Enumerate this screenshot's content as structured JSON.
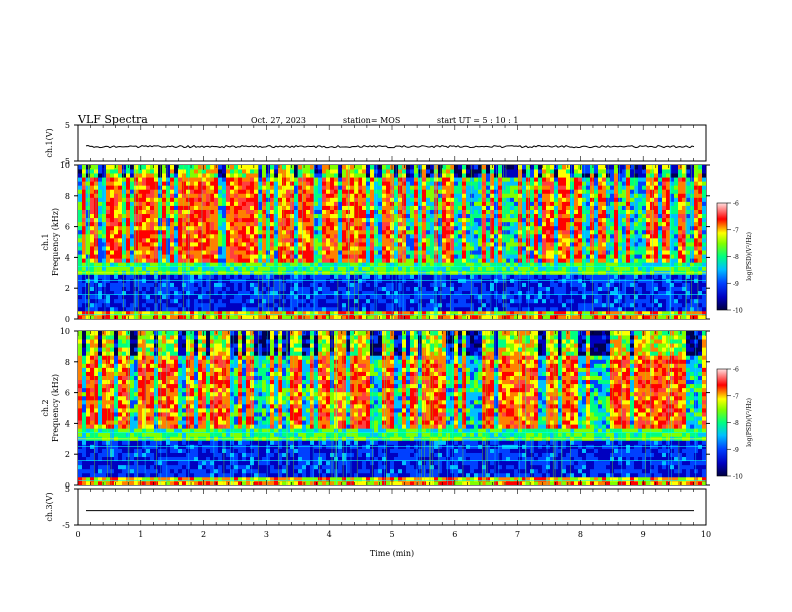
{
  "header": {
    "title": "VLF Spectra",
    "date": "Oct. 27, 2023",
    "station": "station= MOS",
    "start": "start  UT  =   5  : 10 : 1"
  },
  "chart_data": [
    {
      "type": "line",
      "panel": "ch1-waveform",
      "ylabel": "ch.1(V)",
      "ylim": [
        -5,
        5
      ],
      "yticks": [
        "5",
        "-5"
      ],
      "series": [
        {
          "values_description_free": true,
          "level": -1.0
        }
      ]
    },
    {
      "type": "heatmap",
      "panel": "ch1-spectrogram",
      "ylabel": [
        "ch.1",
        "Frequency (kHz)"
      ],
      "ylim": [
        0,
        10
      ],
      "yticks": [
        0,
        2,
        4,
        6,
        8,
        10
      ],
      "xlim": [
        0,
        10
      ],
      "colorbar": {
        "label": "log(PSD)(V²/Hz)",
        "ticks": [
          -6,
          -7,
          -8,
          -9,
          -10
        ],
        "range": [
          -10,
          -6
        ]
      }
    },
    {
      "type": "heatmap",
      "panel": "ch2-spectrogram",
      "ylabel": [
        "ch.2",
        "Frequency (kHz)"
      ],
      "ylim": [
        0,
        10
      ],
      "yticks": [
        0,
        2,
        4,
        6,
        8,
        10
      ],
      "xlim": [
        0,
        10
      ],
      "colorbar": {
        "label": "log(PSD)(V²/Hz)",
        "ticks": [
          -6,
          -7,
          -8,
          -9,
          -10
        ],
        "range": [
          -10,
          -6
        ]
      }
    },
    {
      "type": "line",
      "panel": "ch3-waveform",
      "ylabel": "ch.3(V)",
      "ylim": [
        -5,
        5
      ],
      "yticks": [
        "5",
        "-5"
      ],
      "series": [
        {
          "level": -1.0
        }
      ],
      "xlabel": "Time  (min)",
      "xlim": [
        0,
        10
      ],
      "xticks": [
        0,
        1,
        2,
        3,
        4,
        5,
        6,
        7,
        8,
        9,
        10
      ]
    }
  ],
  "colors": {
    "scale": [
      "#000080",
      "#0000ff",
      "#00ffff",
      "#00ff00",
      "#ffff00",
      "#ff0000",
      "#ffffff"
    ]
  }
}
